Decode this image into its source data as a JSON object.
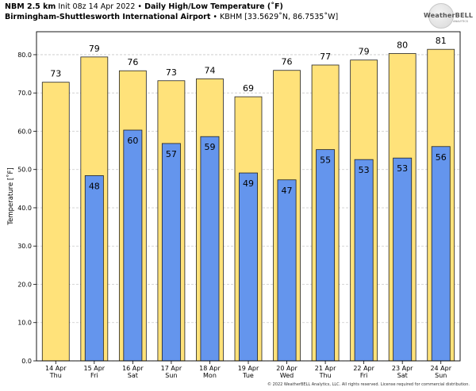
{
  "header": {
    "model": "NBM 2.5 km",
    "init": "Init 08z 14 Apr 2022",
    "separator": "•",
    "product": "Daily High/Low Temperature (˚F)",
    "location": "Birmingham-Shuttlesworth International Airport",
    "station": "KBHM [33.5629˚N, 86.7535˚W]"
  },
  "logo": {
    "text": "WeatherBELL",
    "sub": "ANALYTICS"
  },
  "copyright": "© 2022 WeatherBELL Analytics, LLC. All rights reserved. License required for commercial distribution.",
  "colors": {
    "high": "#ffe27a",
    "low": "#6495ed",
    "grid": "#c9c9c9",
    "bar_edge": "#222222"
  },
  "chart_data": {
    "type": "bar",
    "title": "Daily High/Low Temperature (˚F)",
    "ylabel": "Temperature [˚F]",
    "xlabel": "",
    "ylim": [
      0,
      86
    ],
    "yticks": [
      0,
      10,
      20,
      30,
      40,
      50,
      60,
      70,
      80
    ],
    "ytick_labels": [
      "0.0",
      "10.0",
      "20.0",
      "30.0",
      "40.0",
      "50.0",
      "60.0",
      "70.0",
      "80.0"
    ],
    "grid": true,
    "categories": [
      {
        "date": "14 Apr",
        "day": "Thu"
      },
      {
        "date": "15 Apr",
        "day": "Fri"
      },
      {
        "date": "16 Apr",
        "day": "Sat"
      },
      {
        "date": "17 Apr",
        "day": "Sun"
      },
      {
        "date": "18 Apr",
        "day": "Mon"
      },
      {
        "date": "19 Apr",
        "day": "Tue"
      },
      {
        "date": "20 Apr",
        "day": "Wed"
      },
      {
        "date": "21 Apr",
        "day": "Thu"
      },
      {
        "date": "22 Apr",
        "day": "Fri"
      },
      {
        "date": "23 Apr",
        "day": "Sat"
      },
      {
        "date": "24 Apr",
        "day": "Sun"
      }
    ],
    "series": [
      {
        "values": [
          72.8,
          79.4,
          75.8,
          73.2,
          73.7,
          69.0,
          75.9,
          77.3,
          78.6,
          80.3,
          81.4
        ],
        "labels": [
          "73",
          "79",
          "76",
          "73",
          "74",
          "69",
          "76",
          "77",
          "79",
          "80",
          "81"
        ]
      },
      {
        "values": [
          null,
          48.4,
          60.3,
          56.8,
          58.6,
          49.1,
          47.3,
          55.2,
          52.6,
          53.0,
          56.0
        ],
        "labels": [
          null,
          "48",
          "60",
          "57",
          "59",
          "49",
          "47",
          "55",
          "53",
          "53",
          "56"
        ]
      }
    ]
  }
}
